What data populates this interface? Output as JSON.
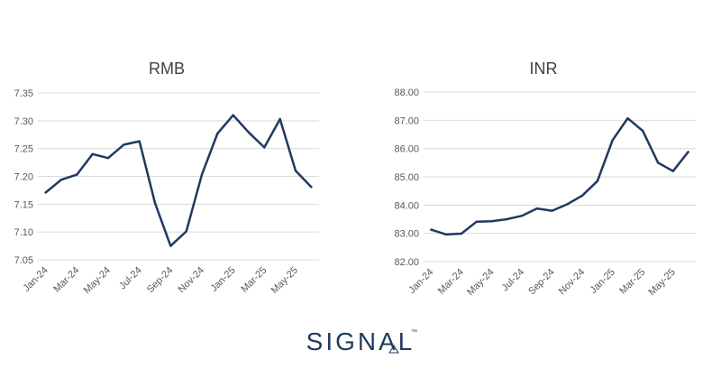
{
  "colors": {
    "line": "#1f3a5f",
    "grid": "#d9d9d9",
    "text": "#595959",
    "title": "#404040",
    "brand": "#1f3a5f"
  },
  "brand": {
    "name": "SIGNAL",
    "trademark": "™"
  },
  "chart_data": [
    {
      "type": "line",
      "title": "RMB",
      "xlabel": "",
      "ylabel": "",
      "categories": [
        "Jan-24",
        "Feb-24",
        "Mar-24",
        "Apr-24",
        "May-24",
        "Jun-24",
        "Jul-24",
        "Aug-24",
        "Sep-24",
        "Oct-24",
        "Nov-24",
        "Dec-24",
        "Jan-25",
        "Feb-25",
        "Mar-25",
        "Apr-25",
        "May-25",
        "Jun-25"
      ],
      "tick_labels": [
        "Jan-24",
        "Mar-24",
        "May-24",
        "Jul-24",
        "Sep-24",
        "Nov-24",
        "Jan-25",
        "Mar-25",
        "May-25"
      ],
      "y_tick_labels": [
        "7.05",
        "7.10",
        "7.15",
        "7.20",
        "7.25",
        "7.30",
        "7.35"
      ],
      "values": [
        7.171,
        7.194,
        7.203,
        7.24,
        7.233,
        7.257,
        7.263,
        7.152,
        7.075,
        7.101,
        7.203,
        7.277,
        7.31,
        7.279,
        7.252,
        7.303,
        7.21,
        7.181
      ],
      "ylim": [
        7.05,
        7.35
      ],
      "grid": true,
      "legend": "none"
    },
    {
      "type": "line",
      "title": "INR",
      "xlabel": "",
      "ylabel": "",
      "categories": [
        "Jan-24",
        "Feb-24",
        "Mar-24",
        "Apr-24",
        "May-24",
        "Jun-24",
        "Jul-24",
        "Aug-24",
        "Sep-24",
        "Oct-24",
        "Nov-24",
        "Dec-24",
        "Jan-25",
        "Feb-25",
        "Mar-25",
        "Apr-25",
        "May-25",
        "Jun-25"
      ],
      "tick_labels": [
        "Jan-24",
        "Mar-24",
        "May-24",
        "Jul-24",
        "Sep-24",
        "Nov-24",
        "Jan-25",
        "Mar-25",
        "May-25"
      ],
      "y_tick_labels": [
        "82.00",
        "83.00",
        "84.00",
        "85.00",
        "86.00",
        "87.00",
        "88.00"
      ],
      "values": [
        83.13,
        82.96,
        82.99,
        83.41,
        83.43,
        83.5,
        83.62,
        83.88,
        83.8,
        84.03,
        84.34,
        84.85,
        86.3,
        87.07,
        86.62,
        85.5,
        85.2,
        85.88
      ],
      "ylim": [
        82,
        88
      ],
      "grid": true,
      "legend": "none"
    }
  ]
}
